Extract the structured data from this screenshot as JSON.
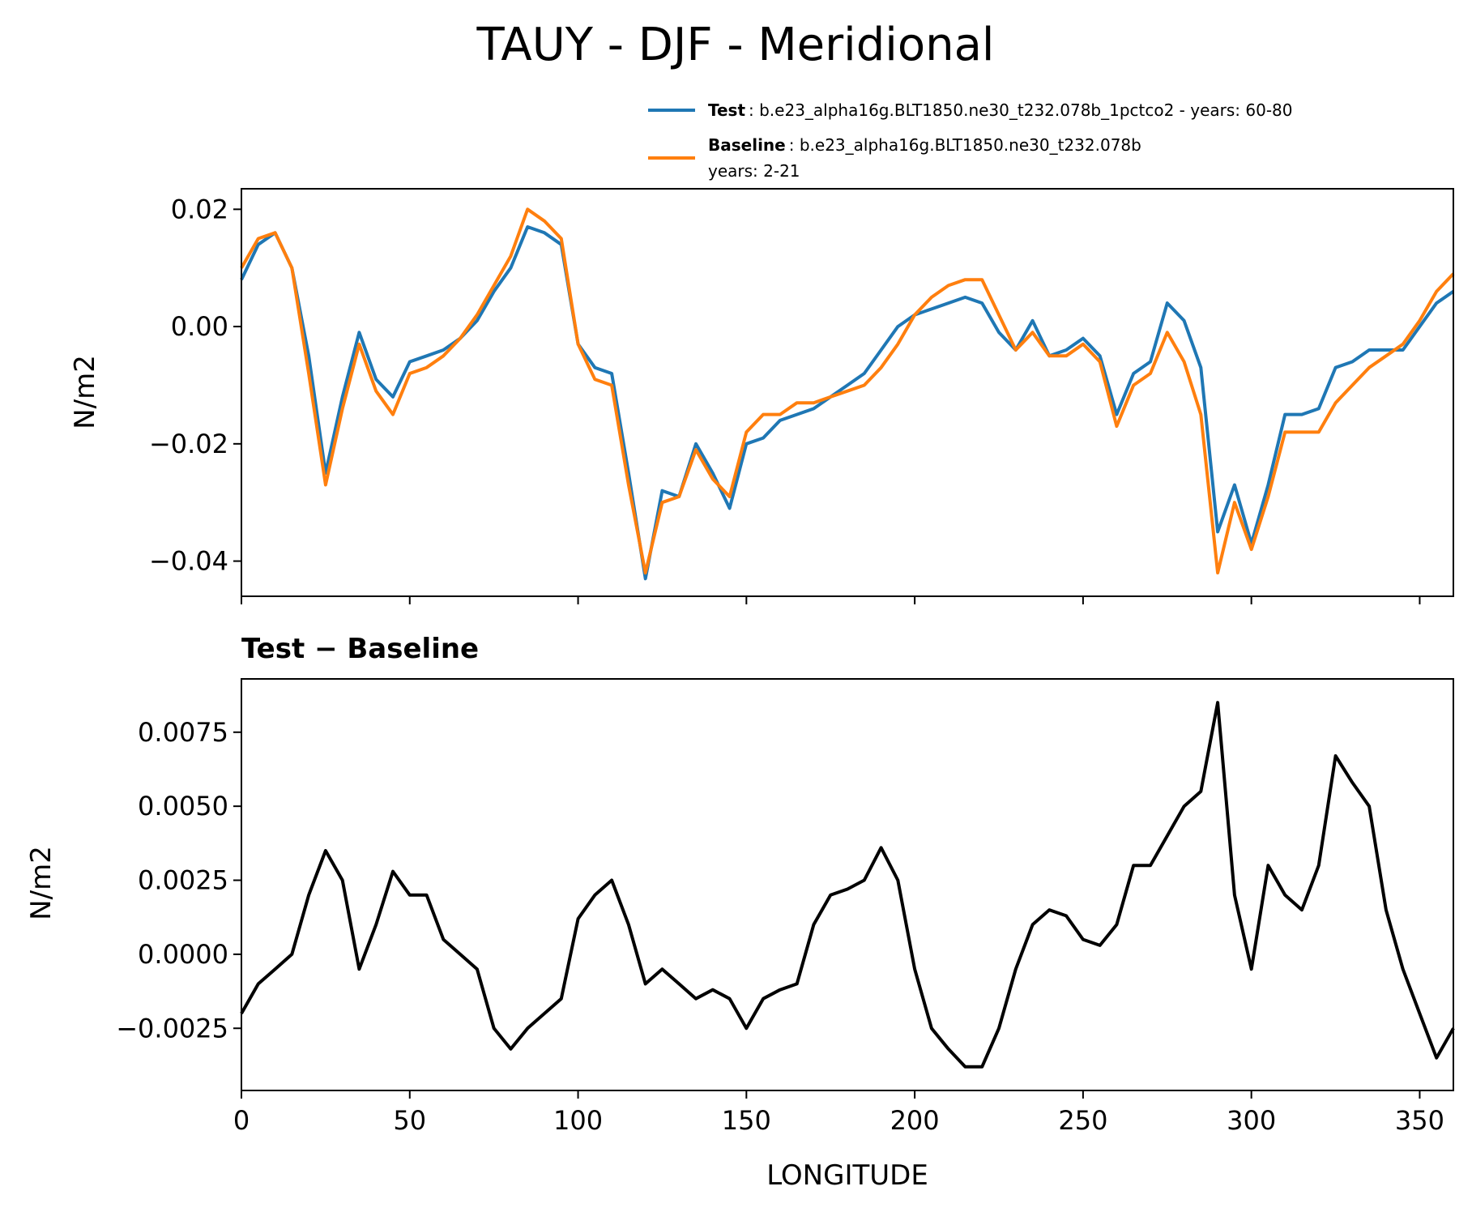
{
  "figure": {
    "title": "TAUY - DJF - Meridional"
  },
  "legend": {
    "test": {
      "bold": "Test",
      "text": ": b.e23_alpha16g.BLT1850.ne30_t232.078b_1pctco2 - years: 60-80",
      "color": "#1f77b4"
    },
    "baseline": {
      "bold": "Baseline",
      "text": ": b.e23_alpha16g.BLT1850.ne30_t232.078b",
      "text2": "years: 2-21",
      "color": "#ff7f0e"
    }
  },
  "chart_data": [
    {
      "type": "line",
      "title": "",
      "xlabel": "",
      "ylabel": "N/m2",
      "xlim": [
        0,
        360
      ],
      "ylim": [
        -0.046,
        0.0235
      ],
      "yticks": [
        0.02,
        0.0,
        -0.02,
        -0.04
      ],
      "ytick_labels": [
        "0.02",
        "0.00",
        "−0.02",
        "−0.04"
      ],
      "xticks": [
        0,
        50,
        100,
        150,
        200,
        250,
        300,
        350
      ],
      "x": [
        0,
        5,
        10,
        15,
        20,
        25,
        30,
        35,
        40,
        45,
        50,
        55,
        60,
        65,
        70,
        75,
        80,
        85,
        90,
        95,
        100,
        105,
        110,
        115,
        120,
        125,
        130,
        135,
        140,
        145,
        150,
        155,
        160,
        165,
        170,
        175,
        180,
        185,
        190,
        195,
        200,
        205,
        210,
        215,
        220,
        225,
        230,
        235,
        240,
        245,
        250,
        255,
        260,
        265,
        270,
        275,
        280,
        285,
        290,
        295,
        300,
        305,
        310,
        315,
        320,
        325,
        330,
        335,
        340,
        345,
        350,
        355,
        360
      ],
      "series": [
        {
          "name": "Test",
          "color": "#1f77b4",
          "values": [
            0.008,
            0.014,
            0.016,
            0.01,
            -0.005,
            -0.025,
            -0.012,
            -0.001,
            -0.009,
            -0.012,
            -0.006,
            -0.005,
            -0.004,
            -0.002,
            0.001,
            0.006,
            0.01,
            0.017,
            0.016,
            0.014,
            -0.003,
            -0.007,
            -0.008,
            -0.025,
            -0.043,
            -0.028,
            -0.029,
            -0.02,
            -0.025,
            -0.031,
            -0.02,
            -0.019,
            -0.016,
            -0.015,
            -0.014,
            -0.012,
            -0.01,
            -0.008,
            -0.004,
            0.0,
            0.002,
            0.003,
            0.004,
            0.005,
            0.004,
            -0.001,
            -0.004,
            0.001,
            -0.005,
            -0.004,
            -0.002,
            -0.005,
            -0.015,
            -0.008,
            -0.006,
            0.004,
            0.001,
            -0.007,
            -0.035,
            -0.027,
            -0.037,
            -0.027,
            -0.015,
            -0.015,
            -0.014,
            -0.007,
            -0.006,
            -0.004,
            -0.004,
            -0.004,
            0.0,
            0.004,
            0.006
          ]
        },
        {
          "name": "Baseline",
          "color": "#ff7f0e",
          "values": [
            0.01,
            0.015,
            0.016,
            0.01,
            -0.008,
            -0.027,
            -0.014,
            -0.003,
            -0.011,
            -0.015,
            -0.008,
            -0.007,
            -0.005,
            -0.002,
            0.002,
            0.007,
            0.012,
            0.02,
            0.018,
            0.015,
            -0.003,
            -0.009,
            -0.01,
            -0.027,
            -0.042,
            -0.03,
            -0.029,
            -0.021,
            -0.026,
            -0.029,
            -0.018,
            -0.015,
            -0.015,
            -0.013,
            -0.013,
            -0.012,
            -0.011,
            -0.01,
            -0.007,
            -0.003,
            0.002,
            0.005,
            0.007,
            0.008,
            0.008,
            0.002,
            -0.004,
            -0.001,
            -0.005,
            -0.005,
            -0.003,
            -0.006,
            -0.017,
            -0.01,
            -0.008,
            -0.001,
            -0.006,
            -0.015,
            -0.042,
            -0.03,
            -0.038,
            -0.029,
            -0.018,
            -0.018,
            -0.018,
            -0.013,
            -0.01,
            -0.007,
            -0.005,
            -0.003,
            0.001,
            0.006,
            0.009
          ]
        }
      ]
    },
    {
      "type": "line",
      "title": "Test − Baseline",
      "xlabel": "LONGITUDE",
      "ylabel": "N/m2",
      "xlim": [
        0,
        360
      ],
      "ylim": [
        -0.0046,
        0.0093
      ],
      "yticks": [
        0.0075,
        0.005,
        0.0025,
        0.0,
        -0.0025
      ],
      "ytick_labels": [
        "0.0075",
        "0.0050",
        "0.0025",
        "0.0000",
        "−0.0025"
      ],
      "xticks": [
        0,
        50,
        100,
        150,
        200,
        250,
        300,
        350
      ],
      "xtick_labels": [
        "0",
        "50",
        "100",
        "150",
        "200",
        "250",
        "300",
        "350"
      ],
      "x": [
        0,
        5,
        10,
        15,
        20,
        25,
        30,
        35,
        40,
        45,
        50,
        55,
        60,
        65,
        70,
        75,
        80,
        85,
        90,
        95,
        100,
        105,
        110,
        115,
        120,
        125,
        130,
        135,
        140,
        145,
        150,
        155,
        160,
        165,
        170,
        175,
        180,
        185,
        190,
        195,
        200,
        205,
        210,
        215,
        220,
        225,
        230,
        235,
        240,
        245,
        250,
        255,
        260,
        265,
        270,
        275,
        280,
        285,
        290,
        295,
        300,
        305,
        310,
        315,
        320,
        325,
        330,
        335,
        340,
        345,
        350,
        355,
        360
      ],
      "series": [
        {
          "name": "Test − Baseline",
          "color": "#000000",
          "values": [
            -0.002,
            -0.001,
            -0.0005,
            0.0,
            0.002,
            0.0035,
            0.0025,
            -0.0005,
            0.001,
            0.0028,
            0.002,
            0.002,
            0.0005,
            0.0,
            -0.0005,
            -0.0025,
            -0.0032,
            -0.0025,
            -0.002,
            -0.0015,
            0.0012,
            0.002,
            0.0025,
            0.001,
            -0.001,
            -0.0005,
            -0.001,
            -0.0015,
            -0.0012,
            -0.0015,
            -0.0025,
            -0.0015,
            -0.0012,
            -0.001,
            0.001,
            0.002,
            0.0022,
            0.0025,
            0.0036,
            0.0025,
            -0.0005,
            -0.0025,
            -0.0032,
            -0.0038,
            -0.0038,
            -0.0025,
            -0.0005,
            0.001,
            0.0015,
            0.0013,
            0.0005,
            0.0003,
            0.001,
            0.003,
            0.003,
            0.004,
            0.005,
            0.0055,
            0.0085,
            0.002,
            -0.0005,
            0.003,
            0.002,
            0.0015,
            0.003,
            0.0067,
            0.0058,
            0.005,
            0.0015,
            -0.0005,
            -0.002,
            -0.0035,
            -0.0025
          ]
        }
      ]
    }
  ]
}
